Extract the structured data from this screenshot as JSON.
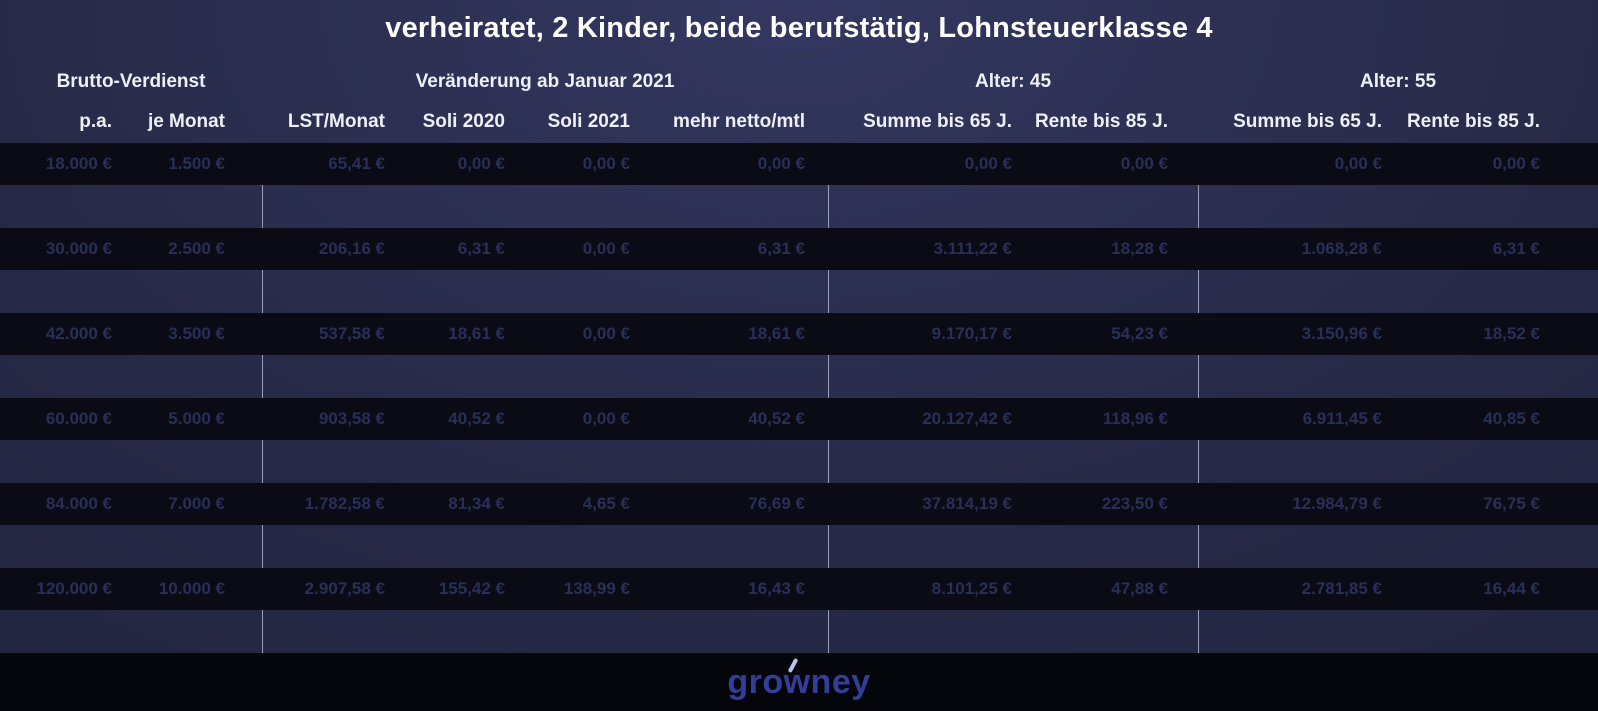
{
  "chart_data": {
    "type": "table",
    "title": "verheiratet, 2 Kinder, beide berufstätig, Lohnsteuerklasse 4",
    "column_groups": [
      {
        "label": "Brutto-Verdienst",
        "columns": [
          "p.a.",
          "je Monat"
        ]
      },
      {
        "label": "Veränderung ab Januar 2021",
        "columns": [
          "LST/Monat",
          "Soli 2020",
          "Soli 2021",
          "mehr netto/mtl"
        ]
      },
      {
        "label": "Alter: 45",
        "columns": [
          "Summe bis 65 J.",
          "Rente bis 85 J."
        ]
      },
      {
        "label": "Alter: 55",
        "columns": [
          "Summe bis 65 J.",
          "Rente bis 85 J."
        ]
      }
    ],
    "rows": [
      [
        "18.000 €",
        "1.500 €",
        "65,41 €",
        "0,00 €",
        "0,00 €",
        "0,00 €",
        "0,00 €",
        "0,00 €",
        "0,00 €",
        "0,00 €"
      ],
      [
        "30.000 €",
        "2.500 €",
        "206,16 €",
        "6,31 €",
        "0,00 €",
        "6,31 €",
        "3.111,22 €",
        "18,28 €",
        "1.068,28 €",
        "6,31 €"
      ],
      [
        "42.000 €",
        "3.500 €",
        "537,58 €",
        "18,61 €",
        "0,00 €",
        "18,61 €",
        "9.170,17 €",
        "54,23 €",
        "3.150,96 €",
        "18,52 €"
      ],
      [
        "60.000 €",
        "5.000 €",
        "903,58 €",
        "40,52 €",
        "0,00 €",
        "40,52 €",
        "20.127,42 €",
        "118,96 €",
        "6.911,45 €",
        "40,85 €"
      ],
      [
        "84.000 €",
        "7.000 €",
        "1.782,58 €",
        "81,34 €",
        "4,65 €",
        "76,69 €",
        "37.814,19 €",
        "223,50 €",
        "12.984,79 €",
        "76,75 €"
      ],
      [
        "120.000 €",
        "10.000 €",
        "2.907,58 €",
        "155,42 €",
        "138,99 €",
        "16,43 €",
        "8.101,25 €",
        "47,88 €",
        "2.781,85 €",
        "16,44 €"
      ]
    ],
    "layout": {
      "grid": "off",
      "legend": "none",
      "row_style": "alternating dark value bands with navy spacer bands and vertical group dividers"
    }
  },
  "footer": {
    "logo_text": "growney"
  },
  "colors": {
    "background_top": "#343760",
    "background": "#272a47",
    "value_row_bg": "#0a0b15",
    "value_text": "#2a2f58",
    "header_text": "#eef0f6",
    "divider": "#9aa0ba",
    "footer_bg": "#05050c",
    "logo": "#333e99",
    "logo_accent": "#b9c6ee"
  }
}
